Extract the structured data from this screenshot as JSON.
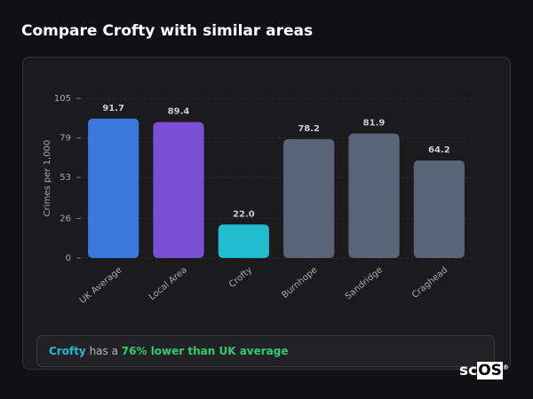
{
  "header": {
    "title": "Compare Crofty with similar areas"
  },
  "chart_data": {
    "type": "bar",
    "ylabel": "Crimes per 1,000",
    "categories": [
      "UK Average",
      "Local Area",
      "Crofty",
      "Burnhope",
      "Sandridge",
      "Craghead"
    ],
    "values": [
      91.7,
      89.4,
      22.0,
      78.2,
      81.9,
      64.2
    ],
    "value_labels": [
      "91.7",
      "89.4",
      "22.0",
      "78.2",
      "81.9",
      "64.2"
    ],
    "colors": [
      "#3a78dc",
      "#7b4fd6",
      "#22bcd0",
      "#5a6478",
      "#5a6478",
      "#5a6478"
    ],
    "ylim": [
      0,
      105
    ],
    "yticks": [
      0,
      26,
      53,
      79,
      105
    ],
    "grid": true
  },
  "summary": {
    "area": "Crofty",
    "middle": "has a",
    "highlight": "76% lower than UK average"
  },
  "logo": {
    "prefix": "sc",
    "suffix": "OS",
    "mark": "®"
  }
}
